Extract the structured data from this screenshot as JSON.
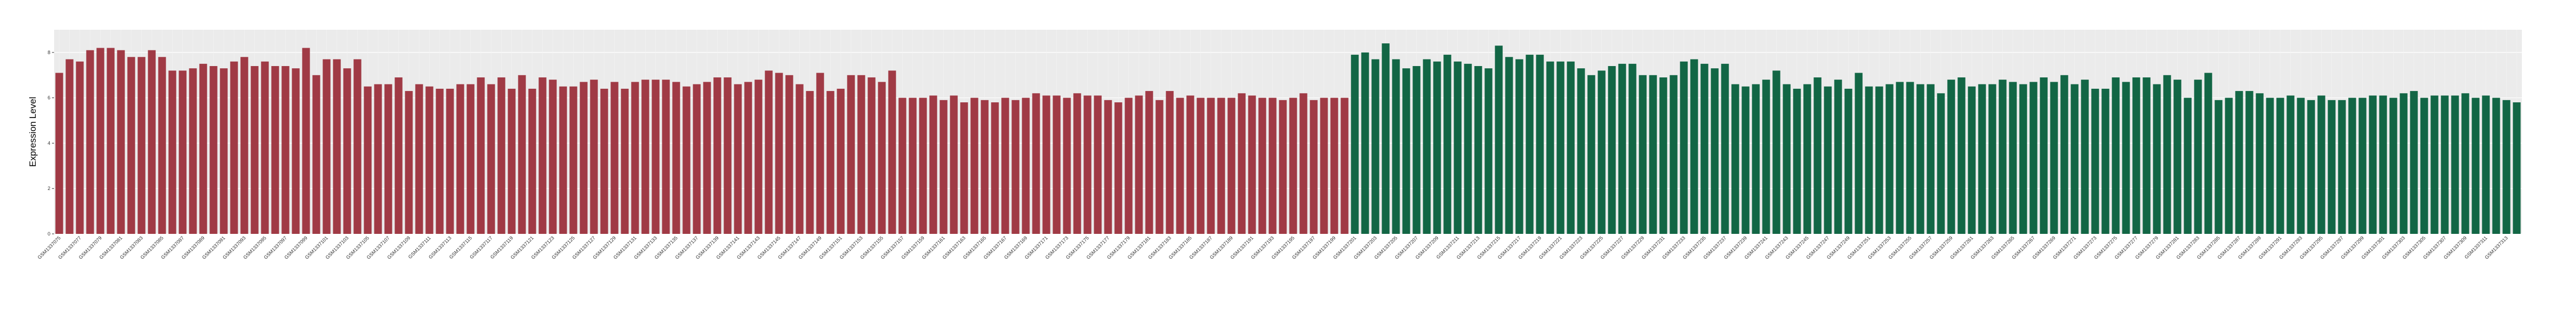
{
  "chart_data": {
    "type": "bar",
    "title": "",
    "xlabel": "",
    "ylabel": "Expression Level",
    "ylim": [
      0,
      9.0
    ],
    "y_ticks": [
      0,
      2,
      4,
      6,
      8
    ],
    "grid": true,
    "legend": "none",
    "panel_background": "#ebebeb",
    "series": [
      {
        "color": "#a03a45",
        "label_prefix": "GSM",
        "first_id": 1337075,
        "values": [
          7.1,
          7.7,
          7.6,
          8.1,
          8.2,
          8.2,
          8.1,
          7.8,
          7.8,
          8.1,
          7.8,
          7.2,
          7.2,
          7.3,
          7.5,
          7.4,
          7.3,
          7.6,
          7.8,
          7.4,
          7.6,
          7.4,
          7.4,
          7.3,
          8.2,
          7.0,
          7.7,
          7.7,
          7.3,
          7.7,
          6.5,
          6.6,
          6.6,
          6.9,
          6.3,
          6.6,
          6.5,
          6.4,
          6.4,
          6.6,
          6.6,
          6.9,
          6.6,
          6.9,
          6.4,
          7.0,
          6.4,
          6.9,
          6.8,
          6.5,
          6.5,
          6.7,
          6.8,
          6.4,
          6.7,
          6.4,
          6.7,
          6.8,
          6.8,
          6.8,
          6.7,
          6.5,
          6.6,
          6.7,
          6.9,
          6.9,
          6.6,
          6.7,
          6.8,
          7.2,
          7.1,
          7.0,
          6.6,
          6.3,
          7.1,
          6.3,
          6.4,
          7.0,
          7.0,
          6.9,
          6.7,
          7.2,
          6.0,
          6.0,
          6.0,
          6.1,
          5.9,
          6.1,
          5.8,
          6.0,
          5.9,
          5.8,
          6.0,
          5.9,
          6.0,
          6.2,
          6.1,
          6.1,
          6.0,
          6.2,
          6.1,
          6.1,
          5.9,
          5.8,
          6.0,
          6.1,
          6.3,
          5.9,
          6.3,
          6.0,
          6.1,
          6.0,
          6.0,
          6.0,
          6.0,
          6.2,
          6.1,
          6.0,
          6.0,
          5.9,
          6.0,
          6.2,
          5.9,
          6.0,
          6.0,
          6.0
        ]
      },
      {
        "color": "#126645",
        "label_prefix": "GSM",
        "first_id": 1337201,
        "values": [
          7.9,
          8.0,
          7.7,
          8.4,
          7.7,
          7.3,
          7.4,
          7.7,
          7.6,
          7.9,
          7.6,
          7.5,
          7.4,
          7.3,
          8.3,
          7.8,
          7.7,
          7.9,
          7.9,
          7.6,
          7.6,
          7.6,
          7.3,
          7.0,
          7.2,
          7.4,
          7.5,
          7.5,
          7.0,
          7.0,
          6.9,
          7.0,
          7.6,
          7.7,
          7.5,
          7.3,
          7.5,
          6.6,
          6.5,
          6.6,
          6.8,
          7.2,
          6.6,
          6.4,
          6.6,
          6.9,
          6.5,
          6.8,
          6.4,
          7.1,
          6.5,
          6.5,
          6.6,
          6.7,
          6.7,
          6.6,
          6.6,
          6.2,
          6.8,
          6.9,
          6.5,
          6.6,
          6.6,
          6.8,
          6.7,
          6.6,
          6.7,
          6.9,
          6.7,
          7.0,
          6.6,
          6.8,
          6.4,
          6.4,
          6.9,
          6.7,
          6.9,
          6.9,
          6.6,
          7.0,
          6.8,
          6.0,
          6.8,
          7.1,
          5.9,
          6.0,
          6.3,
          6.3,
          6.2,
          6.0,
          6.0,
          6.1,
          6.0,
          5.9,
          6.1,
          5.9,
          5.9,
          6.0,
          6.0,
          6.1,
          6.1,
          6.0,
          6.2,
          6.3,
          6.0,
          6.1,
          6.1,
          6.1,
          6.2,
          6.0,
          6.1,
          6.0,
          5.9,
          5.8
        ]
      }
    ]
  }
}
